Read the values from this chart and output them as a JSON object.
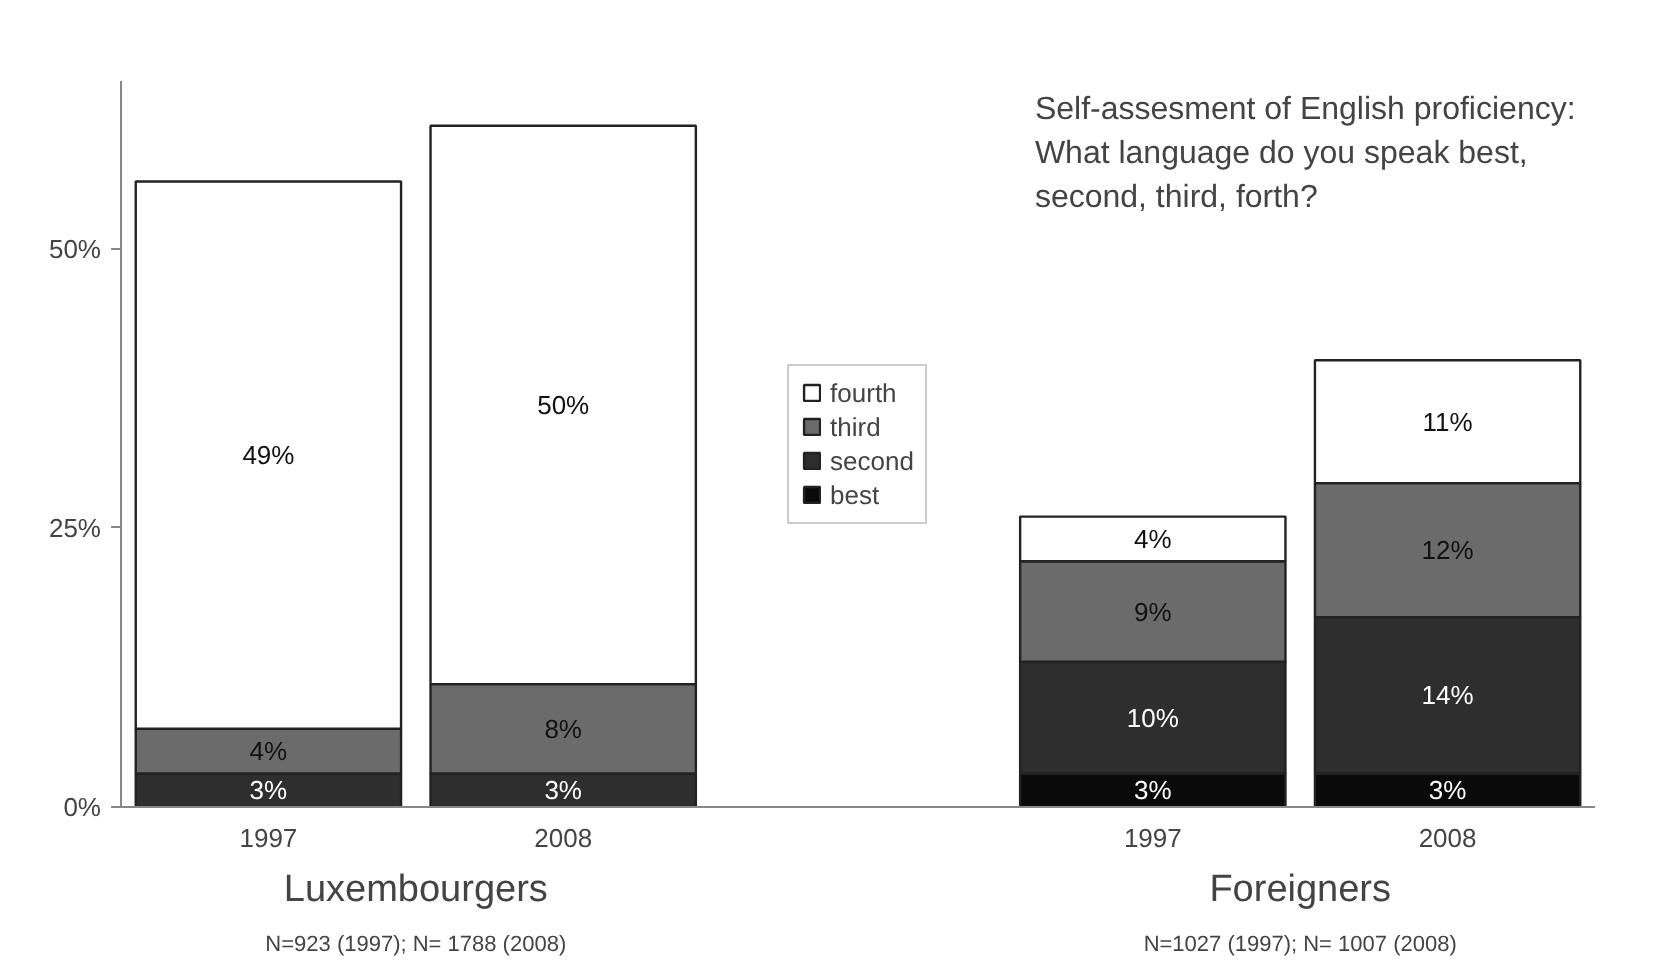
{
  "chart_data": {
    "type": "bar",
    "stacked": true,
    "title": "Self-assesment of English proficiency:\nWhat language do you speak best,\nsecond, third, forth?",
    "categories": [
      "1997",
      "2008",
      null,
      "1997",
      "2008"
    ],
    "series": [
      {
        "name": "best",
        "color": "#0a0a0a",
        "values": [
          null,
          null,
          null,
          3,
          3
        ]
      },
      {
        "name": "second",
        "color": "#2e2e2e",
        "values": [
          3,
          3,
          null,
          10,
          14
        ]
      },
      {
        "name": "third",
        "color": "#6b6b6b",
        "values": [
          4,
          8,
          null,
          9,
          12
        ]
      },
      {
        "name": "fourth",
        "color": "#ffffff",
        "values": [
          49,
          50,
          null,
          4,
          11
        ]
      }
    ],
    "ylim": [
      0,
      65
    ],
    "yticks": [
      {
        "value": 0,
        "label": "0%"
      },
      {
        "value": 25,
        "label": "25%"
      },
      {
        "value": 50,
        "label": "50%"
      }
    ],
    "value_labels": [
      [
        null,
        null,
        null,
        "3%",
        "3%"
      ],
      [
        "3%",
        "3%",
        null,
        "10%",
        "14%"
      ],
      [
        "4%",
        "8%",
        null,
        "9%",
        "12%"
      ],
      [
        "49%",
        "50%",
        null,
        "4%",
        "11%"
      ]
    ],
    "legend": "center",
    "annotations": [
      "Luxembourgers",
      "N=923 (1997); N= 1788 (2008)",
      "Foreigners",
      "N=1027 (1997); N= 1007 (2008)"
    ]
  }
}
